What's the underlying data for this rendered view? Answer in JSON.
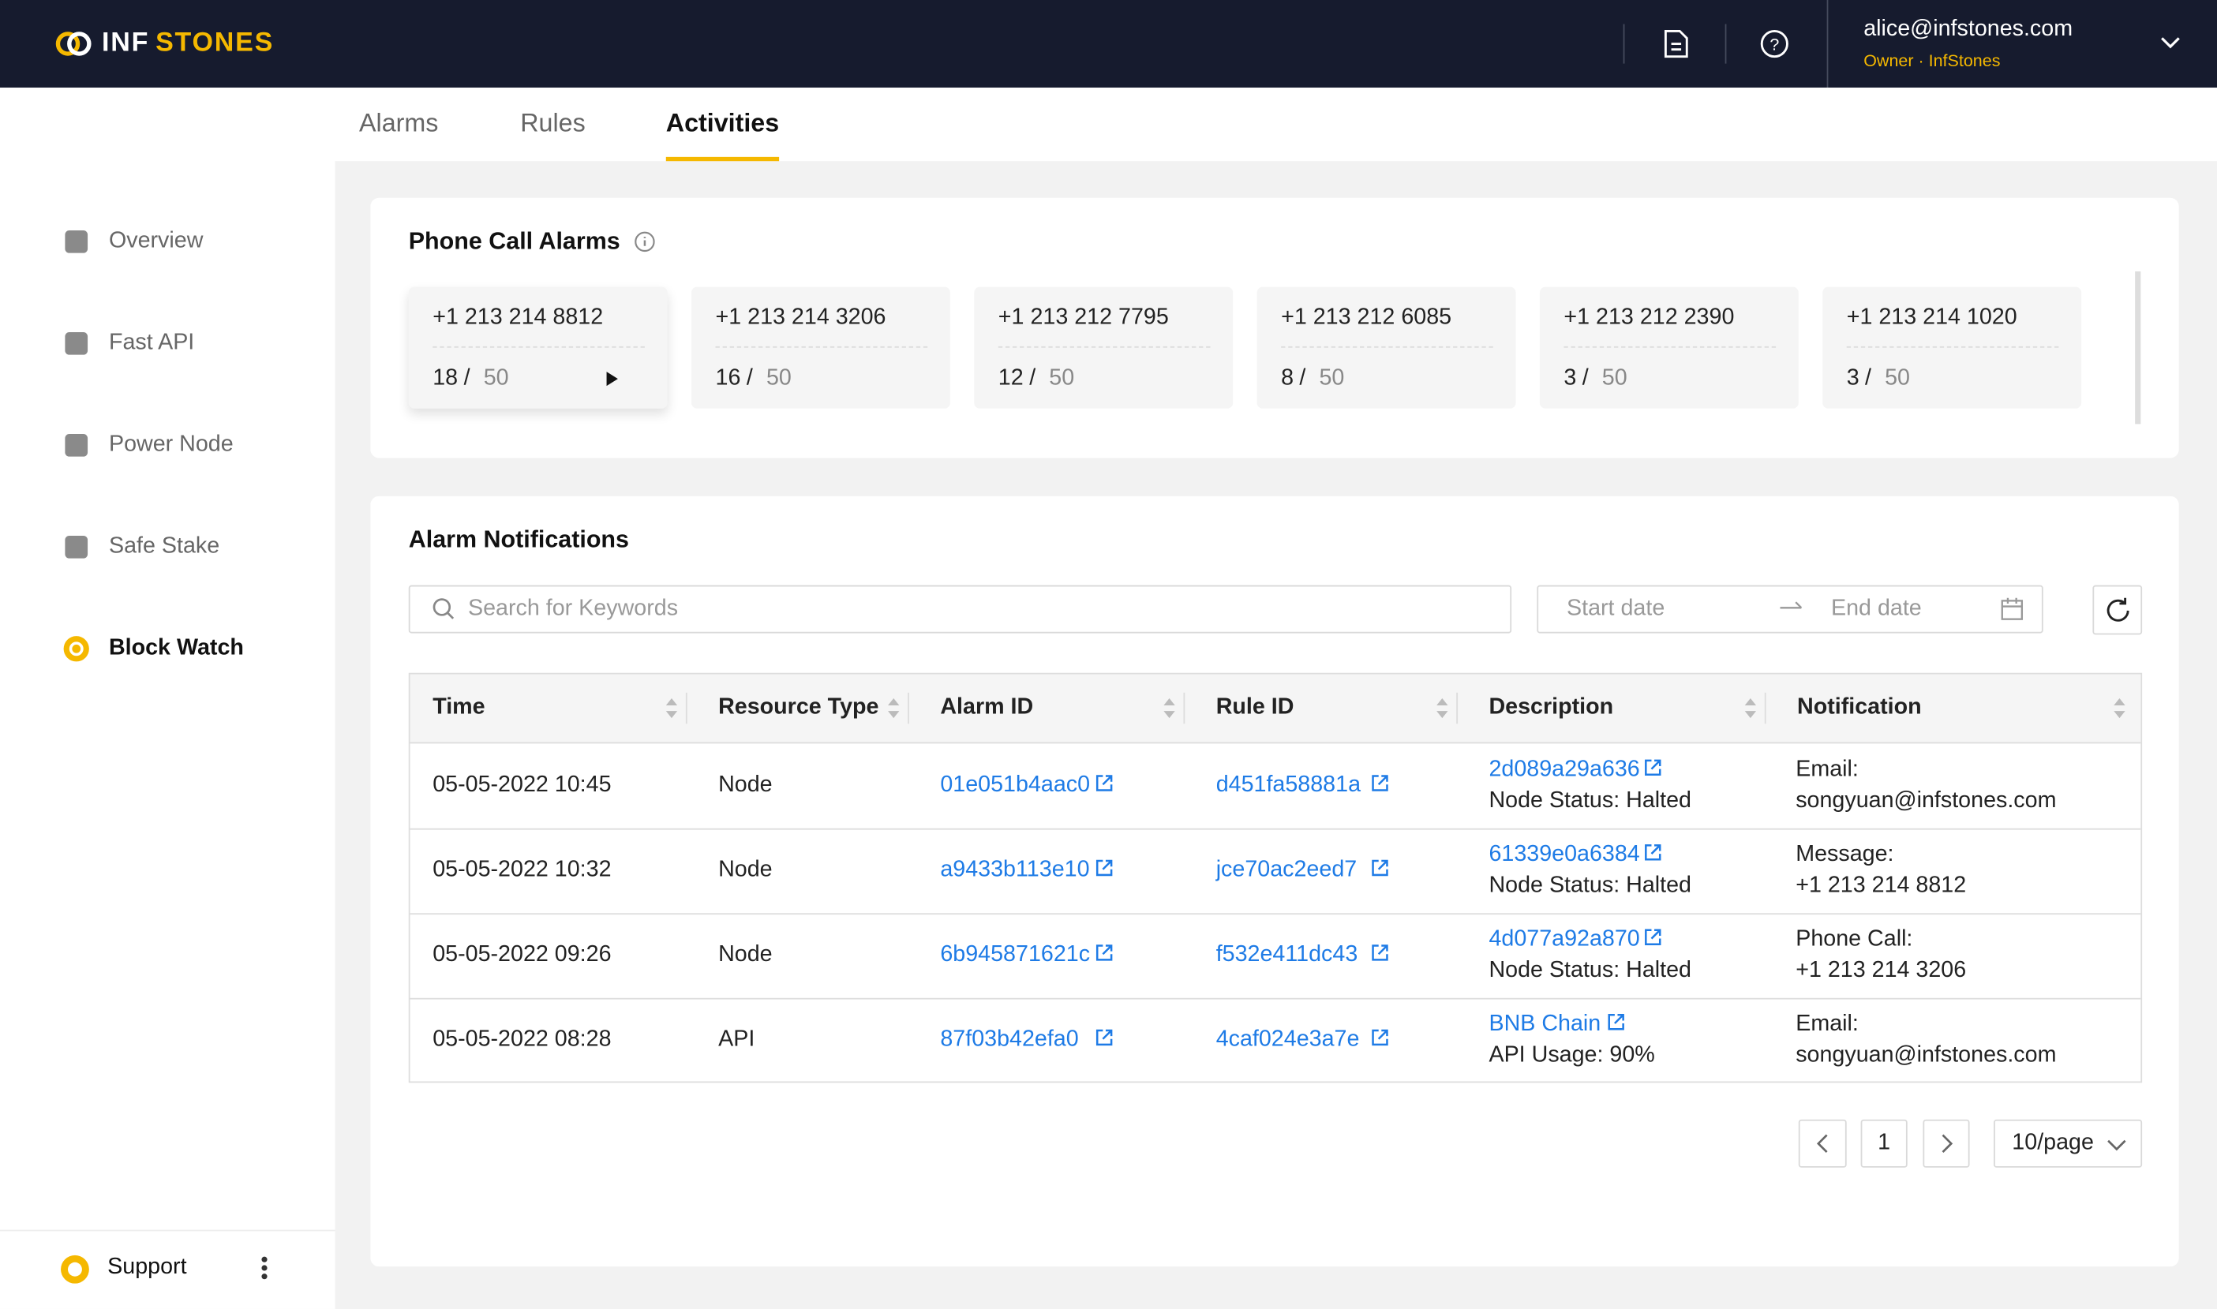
{
  "header": {
    "brand": [
      "INF",
      "STONES"
    ],
    "user_email": "alice@infstones.com",
    "user_role": "Owner · InfStones"
  },
  "tabs": [
    "Alarms",
    "Rules",
    "Activities"
  ],
  "active_tab": 2,
  "sidebar": {
    "items": [
      "Overview",
      "Fast API",
      "Power Node",
      "Safe Stake",
      "Block Watch"
    ],
    "active_item": 4,
    "support": "Support"
  },
  "phone_alarms": {
    "title": "Phone Call Alarms",
    "separator": "/",
    "cards": [
      {
        "number": "+1 213 214 8812",
        "count": 18,
        "limit": 50
      },
      {
        "number": "+1 213 214 3206",
        "count": 16,
        "limit": 50
      },
      {
        "number": "+1 213 212 7795",
        "count": 12,
        "limit": 50
      },
      {
        "number": "+1 213 212 6085",
        "count": 8,
        "limit": 50
      },
      {
        "number": "+1 213 212 2390",
        "count": 3,
        "limit": 50
      },
      {
        "number": "+1 213 214 1020",
        "count": 3,
        "limit": 50
      }
    ]
  },
  "notifications": {
    "title": "Alarm Notifications",
    "search_placeholder": "Search for Keywords",
    "start_date": "Start date",
    "end_date": "End date",
    "table": {
      "headers": [
        "Time",
        "Resource Type",
        "Alarm ID",
        "Rule ID",
        "Description",
        "Notification"
      ],
      "rows": [
        [
          "05-05-2022 10:45",
          "Node",
          "01e051b4aac0",
          "d451fa58881a",
          [
            "2d089a29a636",
            "Node Status: Halted"
          ],
          [
            "Email:",
            "songyuan@infstones.com"
          ]
        ],
        [
          "05-05-2022 10:32",
          "Node",
          "a9433b113e10",
          "jce70ac2eed7",
          [
            "61339e0a6384",
            "Node Status: Halted"
          ],
          [
            "Message:",
            "+1 213 214 8812"
          ]
        ],
        [
          "05-05-2022 09:26",
          "Node",
          "6b945871621c",
          "f532e411dc43",
          [
            "4d077a92a870",
            "Node Status: Halted"
          ],
          [
            "Phone Call:",
            "+1 213 214 3206"
          ]
        ],
        [
          "05-05-2022 08:28",
          "API",
          "87f03b42efa0",
          "4caf024e3a7e",
          [
            "BNB Chain",
            "API Usage: 90%"
          ],
          [
            "Email:",
            "songyuan@infstones.com"
          ]
        ]
      ]
    },
    "pagination": {
      "page": 1,
      "page_size": "10/page"
    }
  }
}
